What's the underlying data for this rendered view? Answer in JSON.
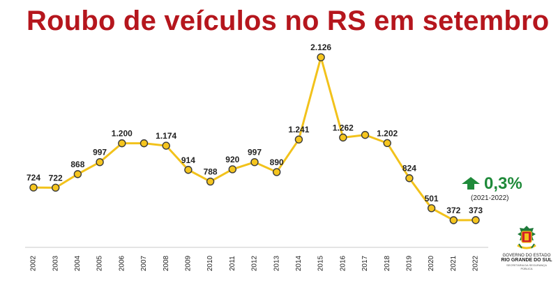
{
  "title": "Roubo de veículos no RS em setembro",
  "change": {
    "value": "0,3%",
    "period": "(2021-2022)",
    "color": "#1f8a3a"
  },
  "logo": {
    "line1": "GOVERNO DO ESTADO",
    "line2": "RIO GRANDE DO SUL",
    "line3": "SECRETARIA DA SEGURANÇA PÚBLICA"
  },
  "colors": {
    "title": "#b5161d",
    "line": "#f2c21b",
    "marker_fill": "#f5c51e",
    "marker_stroke": "#3a3a3a"
  },
  "chart_data": {
    "type": "line",
    "title": "Roubo de veículos no RS em setembro",
    "xlabel": "",
    "ylabel": "",
    "grid": false,
    "categories": [
      "2002",
      "2003",
      "2004",
      "2005",
      "2006",
      "2007",
      "2008",
      "2009",
      "2010",
      "2011",
      "2012",
      "2013",
      "2014",
      "2015",
      "2016",
      "2017",
      "2018",
      "2019",
      "2020",
      "2021",
      "2022"
    ],
    "series": [
      {
        "values": [
          724,
          722,
          868,
          997,
          1200,
          1200,
          1174,
          914,
          788,
          920,
          997,
          890,
          1241,
          2126,
          1262,
          1290,
          1202,
          824,
          501,
          372,
          373
        ],
        "labels": [
          "724",
          "722",
          "868",
          "997",
          "1.200",
          "",
          "1.174",
          "914",
          "788",
          "920",
          "997",
          "890",
          "1.241",
          "2.126",
          "1.262",
          "",
          "1.202",
          "824",
          "501",
          "372",
          "373"
        ]
      }
    ]
  }
}
